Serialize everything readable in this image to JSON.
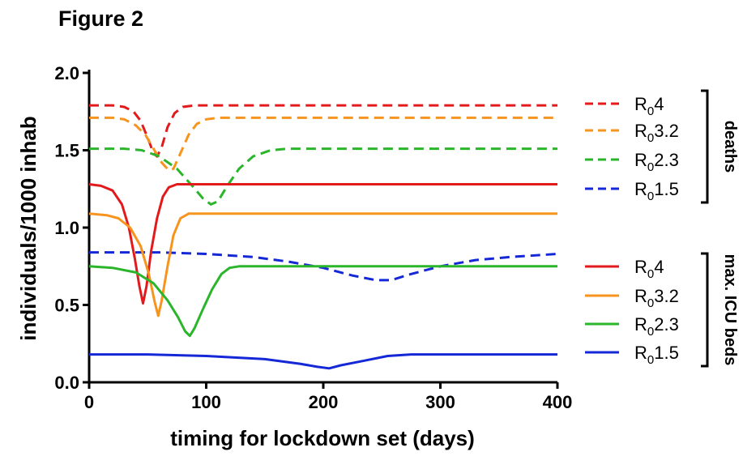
{
  "figure_label": "Figure 2",
  "chart_data": {
    "type": "line",
    "title": "",
    "xlabel": "timing for lockdown set (days)",
    "ylabel": "individuals/1000 inhab",
    "xlim": [
      0,
      400
    ],
    "ylim": [
      0,
      2.0
    ],
    "xticks": [
      0,
      100,
      200,
      300,
      400
    ],
    "yticks": [
      0.0,
      0.5,
      1.0,
      1.5,
      2.0
    ],
    "xtick_labels": [
      "0",
      "100",
      "200",
      "300",
      "400"
    ],
    "ytick_labels": [
      "0.0",
      "0.5",
      "1.0",
      "1.5",
      "2.0"
    ],
    "grid": false,
    "legend_position": "right",
    "legend_groups": [
      {
        "label": "deaths",
        "series_names": [
          "R₀4 (deaths)",
          "R₀3.2 (deaths)",
          "R₀2.3 (deaths)",
          "R₀1.5 (deaths)"
        ]
      },
      {
        "label": "max. ICU beds",
        "series_names": [
          "R₀4 (ICU)",
          "R₀3.2 (ICU)",
          "R₀2.3 (ICU)",
          "R₀1.5 (ICU)"
        ]
      }
    ],
    "series": [
      {
        "name": "R₀4 (deaths)",
        "legend_main": "R",
        "legend_sub": "0",
        "legend_rest": "4",
        "color": "#e31a1c",
        "dash": true,
        "points": [
          [
            0,
            1.79
          ],
          [
            20,
            1.79
          ],
          [
            30,
            1.78
          ],
          [
            38,
            1.75
          ],
          [
            44,
            1.69
          ],
          [
            50,
            1.58
          ],
          [
            55,
            1.48
          ],
          [
            58,
            1.46
          ],
          [
            62,
            1.52
          ],
          [
            67,
            1.65
          ],
          [
            73,
            1.74
          ],
          [
            80,
            1.78
          ],
          [
            90,
            1.79
          ],
          [
            400,
            1.79
          ]
        ]
      },
      {
        "name": "R₀3.2 (deaths)",
        "legend_main": "R",
        "legend_sub": "0",
        "legend_rest": "3.2",
        "color": "#f7941d",
        "dash": true,
        "points": [
          [
            0,
            1.71
          ],
          [
            20,
            1.71
          ],
          [
            30,
            1.7
          ],
          [
            40,
            1.66
          ],
          [
            48,
            1.6
          ],
          [
            55,
            1.51
          ],
          [
            62,
            1.42
          ],
          [
            68,
            1.37
          ],
          [
            72,
            1.38
          ],
          [
            78,
            1.48
          ],
          [
            85,
            1.6
          ],
          [
            92,
            1.67
          ],
          [
            100,
            1.7
          ],
          [
            110,
            1.71
          ],
          [
            400,
            1.71
          ]
        ]
      },
      {
        "name": "R₀2.3 (deaths)",
        "legend_main": "R",
        "legend_sub": "0",
        "legend_rest": "2.3",
        "color": "#2ab52a",
        "dash": true,
        "points": [
          [
            0,
            1.51
          ],
          [
            30,
            1.51
          ],
          [
            45,
            1.5
          ],
          [
            60,
            1.46
          ],
          [
            75,
            1.38
          ],
          [
            88,
            1.27
          ],
          [
            97,
            1.19
          ],
          [
            104,
            1.15
          ],
          [
            110,
            1.17
          ],
          [
            118,
            1.27
          ],
          [
            128,
            1.38
          ],
          [
            140,
            1.46
          ],
          [
            155,
            1.5
          ],
          [
            170,
            1.51
          ],
          [
            400,
            1.51
          ]
        ]
      },
      {
        "name": "R₀1.5 (deaths)",
        "legend_main": "R",
        "legend_sub": "0",
        "legend_rest": "1.5",
        "color": "#1428d7",
        "dash": true,
        "points": [
          [
            0,
            0.84
          ],
          [
            60,
            0.84
          ],
          [
            100,
            0.83
          ],
          [
            140,
            0.81
          ],
          [
            170,
            0.78
          ],
          [
            200,
            0.74
          ],
          [
            225,
            0.69
          ],
          [
            245,
            0.66
          ],
          [
            258,
            0.66
          ],
          [
            275,
            0.7
          ],
          [
            300,
            0.75
          ],
          [
            330,
            0.79
          ],
          [
            360,
            0.81
          ],
          [
            400,
            0.83
          ]
        ]
      },
      {
        "name": "R₀4 (ICU)",
        "legend_main": "R",
        "legend_sub": "0",
        "legend_rest": "4",
        "color": "#e31a1c",
        "dash": false,
        "points": [
          [
            0,
            1.28
          ],
          [
            10,
            1.27
          ],
          [
            20,
            1.24
          ],
          [
            28,
            1.15
          ],
          [
            34,
            1.0
          ],
          [
            39,
            0.8
          ],
          [
            43,
            0.62
          ],
          [
            46,
            0.51
          ],
          [
            49,
            0.62
          ],
          [
            53,
            0.85
          ],
          [
            58,
            1.06
          ],
          [
            63,
            1.2
          ],
          [
            68,
            1.26
          ],
          [
            75,
            1.28
          ],
          [
            400,
            1.28
          ]
        ]
      },
      {
        "name": "R₀3.2 (ICU)",
        "legend_main": "R",
        "legend_sub": "0",
        "legend_rest": "3.2",
        "color": "#f7941d",
        "dash": false,
        "points": [
          [
            0,
            1.09
          ],
          [
            15,
            1.08
          ],
          [
            25,
            1.06
          ],
          [
            35,
            1.0
          ],
          [
            44,
            0.88
          ],
          [
            51,
            0.7
          ],
          [
            56,
            0.52
          ],
          [
            59,
            0.43
          ],
          [
            62,
            0.53
          ],
          [
            67,
            0.75
          ],
          [
            72,
            0.95
          ],
          [
            78,
            1.06
          ],
          [
            85,
            1.09
          ],
          [
            400,
            1.09
          ]
        ]
      },
      {
        "name": "R₀2.3 (ICU)",
        "legend_main": "R",
        "legend_sub": "0",
        "legend_rest": "2.3",
        "color": "#2ab52a",
        "dash": false,
        "points": [
          [
            0,
            0.75
          ],
          [
            20,
            0.74
          ],
          [
            40,
            0.71
          ],
          [
            55,
            0.64
          ],
          [
            67,
            0.53
          ],
          [
            76,
            0.42
          ],
          [
            82,
            0.33
          ],
          [
            86,
            0.3
          ],
          [
            90,
            0.35
          ],
          [
            97,
            0.47
          ],
          [
            105,
            0.6
          ],
          [
            113,
            0.7
          ],
          [
            120,
            0.74
          ],
          [
            128,
            0.75
          ],
          [
            400,
            0.75
          ]
        ]
      },
      {
        "name": "R₀1.5 (ICU)",
        "legend_main": "R",
        "legend_sub": "0",
        "legend_rest": "1.5",
        "color": "#1428d7",
        "dash": false,
        "points": [
          [
            0,
            0.18
          ],
          [
            50,
            0.18
          ],
          [
            100,
            0.17
          ],
          [
            150,
            0.15
          ],
          [
            180,
            0.12
          ],
          [
            195,
            0.1
          ],
          [
            205,
            0.09
          ],
          [
            215,
            0.11
          ],
          [
            235,
            0.14
          ],
          [
            255,
            0.17
          ],
          [
            275,
            0.18
          ],
          [
            300,
            0.18
          ],
          [
            400,
            0.18
          ]
        ]
      }
    ]
  }
}
